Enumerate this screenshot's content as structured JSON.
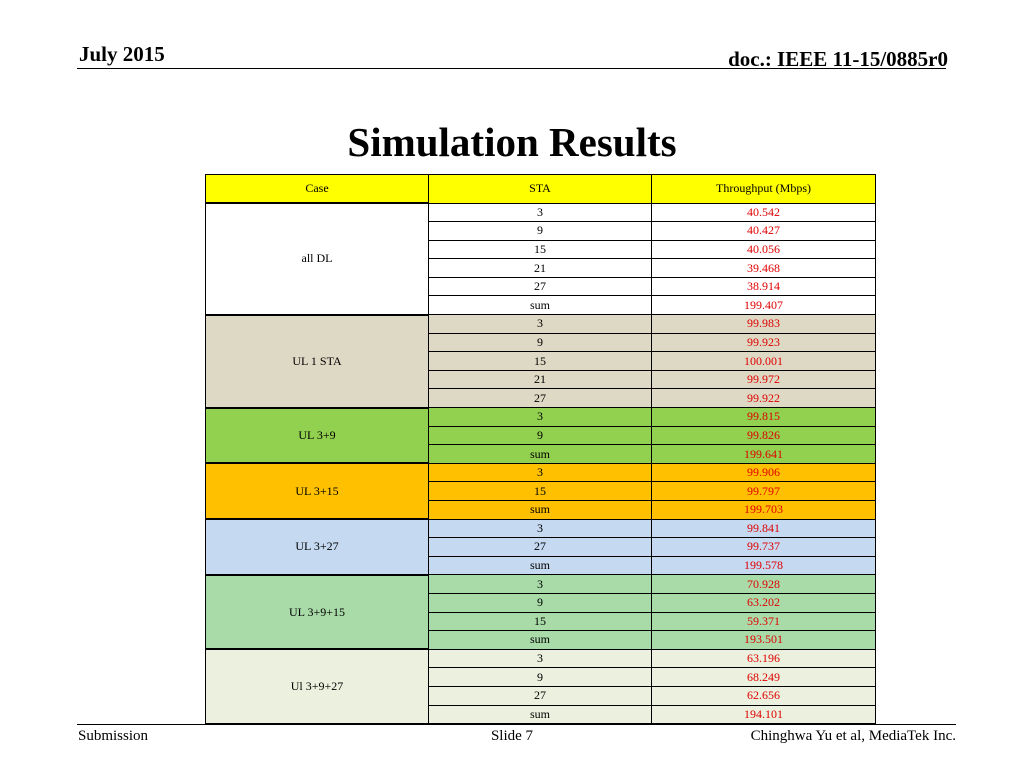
{
  "header": {
    "date": "July 2015",
    "doc": "doc.: IEEE 11-15/0885r0"
  },
  "title": "Simulation Results",
  "table": {
    "columns": [
      "Case",
      "STA",
      "Throughput (Mbps)"
    ],
    "header_color": "#ffff00",
    "value_color": "#e00000",
    "groups": [
      {
        "case": "all DL",
        "color": "#ffffff",
        "rows": [
          {
            "sta": "3",
            "throughput": "40.542"
          },
          {
            "sta": "9",
            "throughput": "40.427"
          },
          {
            "sta": "15",
            "throughput": "40.056"
          },
          {
            "sta": "21",
            "throughput": "39.468"
          },
          {
            "sta": "27",
            "throughput": "38.914"
          },
          {
            "sta": "sum",
            "throughput": "199.407"
          }
        ]
      },
      {
        "case": "UL 1 STA",
        "color": "#ddd9c4",
        "rows": [
          {
            "sta": "3",
            "throughput": "99.983"
          },
          {
            "sta": "9",
            "throughput": "99.923"
          },
          {
            "sta": "15",
            "throughput": "100.001"
          },
          {
            "sta": "21",
            "throughput": "99.972"
          },
          {
            "sta": "27",
            "throughput": "99.922"
          }
        ]
      },
      {
        "case": "UL 3+9",
        "color": "#92d050",
        "rows": [
          {
            "sta": "3",
            "throughput": "99.815"
          },
          {
            "sta": "9",
            "throughput": "99.826"
          },
          {
            "sta": "sum",
            "throughput": "199.641"
          }
        ]
      },
      {
        "case": "UL 3+15",
        "color": "#ffc000",
        "rows": [
          {
            "sta": "3",
            "throughput": "99.906"
          },
          {
            "sta": "15",
            "throughput": "99.797"
          },
          {
            "sta": "sum",
            "throughput": "199.703"
          }
        ]
      },
      {
        "case": "UL 3+27",
        "color": "#c5d9f1",
        "rows": [
          {
            "sta": "3",
            "throughput": "99.841"
          },
          {
            "sta": "27",
            "throughput": "99.737"
          },
          {
            "sta": "sum",
            "throughput": "199.578"
          }
        ]
      },
      {
        "case": "UL 3+9+15",
        "color": "#a9dba9",
        "rows": [
          {
            "sta": "3",
            "throughput": "70.928"
          },
          {
            "sta": "9",
            "throughput": "63.202"
          },
          {
            "sta": "15",
            "throughput": "59.371"
          },
          {
            "sta": "sum",
            "throughput": "193.501"
          }
        ]
      },
      {
        "case": "Ul 3+9+27",
        "color": "#ebf1de",
        "rows": [
          {
            "sta": "3",
            "throughput": "63.196"
          },
          {
            "sta": "9",
            "throughput": "68.249"
          },
          {
            "sta": "27",
            "throughput": "62.656"
          },
          {
            "sta": "sum",
            "throughput": "194.101"
          }
        ]
      }
    ]
  },
  "footer": {
    "left": "Submission",
    "center": "Slide 7",
    "right": "Chinghwa Yu et al, MediaTek Inc."
  }
}
